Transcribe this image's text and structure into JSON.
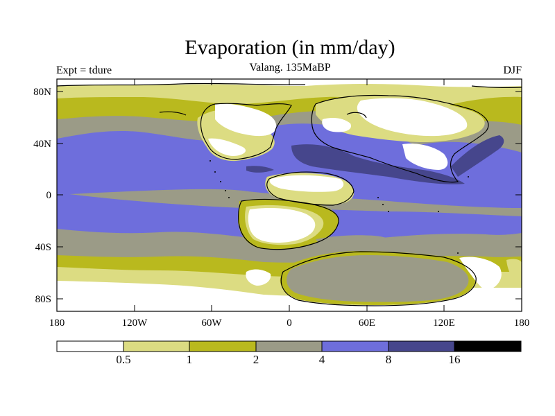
{
  "title": "Evaporation (in mm/day)",
  "subtitle": "Valang.  135MaBP",
  "left_label": "Expt = tdure",
  "right_label": "DJF",
  "colors": {
    "band_0": "#ffffff",
    "band_1": "#dcdc82",
    "band_2": "#b9b91e",
    "band_3": "#9b9b87",
    "band_4": "#6e6edc",
    "band_5": "#46468c",
    "band_6": "#000000"
  },
  "map": {
    "lat_ticks": [
      "80N",
      "40N",
      "0",
      "40S",
      "80S"
    ],
    "lon_ticks": [
      "180",
      "120W",
      "60W",
      "0",
      "60E",
      "120E",
      "180"
    ]
  },
  "colorbar": {
    "labels": [
      "0.5",
      "1",
      "2",
      "4",
      "8",
      "16"
    ]
  }
}
